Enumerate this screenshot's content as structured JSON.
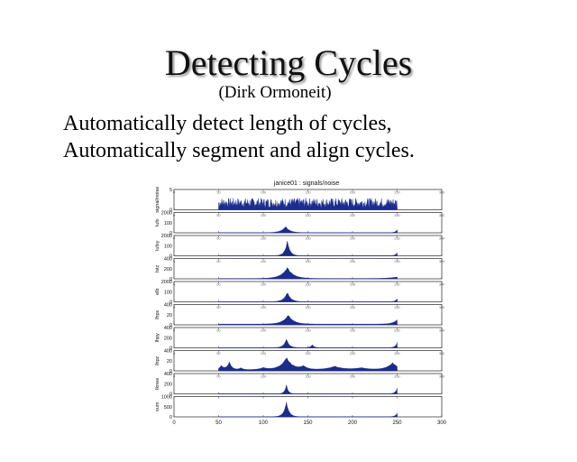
{
  "slide": {
    "title": "Detecting Cycles",
    "author": "(Dirk Ormoneit)",
    "bullets": [
      "Automatically detect length of cycles,",
      "Automatically segment and align cycles."
    ]
  },
  "colors": {
    "series": "#1c2c8c",
    "axis": "#000000",
    "grid": "#333333"
  },
  "chart_data": {
    "type": "area",
    "title": "janice01 : signals/noise",
    "x_axis": {
      "range": [
        0,
        300
      ],
      "tick_labels": [
        "0",
        "50",
        "100",
        "150",
        "200",
        "250",
        "300"
      ]
    },
    "data_extent": [
      50,
      250
    ],
    "panels": [
      {
        "name": "signals/noise",
        "ylabel": "signal/noise",
        "tick_labels": [
          "5",
          "0"
        ],
        "ylim": [
          0,
          5
        ],
        "shape": "noise",
        "baseline": 1.7,
        "noise": 1.2
      },
      {
        "name": "lufx",
        "ylabel": "lufx",
        "tick_labels": [
          "2000",
          "100",
          "0"
        ],
        "ylim": [
          0,
          200
        ],
        "shape": "peaks",
        "peaks": [
          [
            125,
            60,
            5
          ],
          [
            250,
            30,
            2
          ]
        ],
        "floor": 1
      },
      {
        "name": "lufxy",
        "ylabel": "lufxy",
        "tick_labels": [
          "2000",
          "100",
          "0"
        ],
        "ylim": [
          0,
          200
        ],
        "shape": "peaks",
        "peaks": [
          [
            127,
            140,
            3
          ],
          [
            250,
            30,
            2
          ]
        ],
        "floor": 1
      },
      {
        "name": "lstz",
        "ylabel": "lstz",
        "tick_labels": [
          "400",
          "200",
          "0"
        ],
        "ylim": [
          0,
          400
        ],
        "shape": "peaks",
        "peaks": [
          [
            127,
            210,
            7
          ],
          [
            250,
            30,
            10
          ]
        ],
        "floor": 6
      },
      {
        "name": "elb",
        "ylabel": "elb",
        "tick_labels": [
          "2000",
          "100",
          "0"
        ],
        "ylim": [
          0,
          200
        ],
        "shape": "peaks",
        "peaks": [
          [
            127,
            90,
            4
          ],
          [
            250,
            30,
            2
          ]
        ],
        "floor": 1
      },
      {
        "name": "lhpx",
        "ylabel": "lhpx",
        "tick_labels": [
          "400",
          "20",
          "0"
        ],
        "ylim": [
          0,
          40
        ],
        "shape": "peaks",
        "peaks": [
          [
            128,
            18,
            6
          ],
          [
            250,
            8,
            5
          ]
        ],
        "floor": 1.5
      },
      {
        "name": "lhpy",
        "ylabel": "lhpy",
        "tick_labels": [
          "400",
          "200",
          "0"
        ],
        "ylim": [
          0,
          400
        ],
        "shape": "peaks",
        "peaks": [
          [
            126,
            170,
            3
          ],
          [
            155,
            60,
            2
          ],
          [
            250,
            100,
            2
          ]
        ],
        "floor": 4
      },
      {
        "name": "lhpz",
        "ylabel": "lhpz",
        "tick_labels": [
          "400",
          "20",
          "0"
        ],
        "ylim": [
          0,
          40
        ],
        "shape": "peaks",
        "peaks": [
          [
            53,
            8,
            3
          ],
          [
            62,
            15,
            3
          ],
          [
            75,
            4,
            3
          ],
          [
            100,
            4,
            6
          ],
          [
            126,
            24,
            7
          ],
          [
            145,
            7,
            5
          ],
          [
            180,
            7,
            10
          ],
          [
            210,
            4,
            10
          ],
          [
            245,
            14,
            7
          ]
        ],
        "floor": 2
      },
      {
        "name": "lknee",
        "ylabel": "lknee",
        "tick_labels": [
          "400",
          "200",
          "0"
        ],
        "ylim": [
          0,
          400
        ],
        "shape": "peaks",
        "peaks": [
          [
            126,
            170,
            2
          ],
          [
            250,
            110,
            2
          ]
        ],
        "floor": 3
      },
      {
        "name": "sum",
        "ylabel": "sum",
        "tick_labels": [
          "1000",
          "500",
          "0"
        ],
        "ylim": [
          0,
          1000
        ],
        "shape": "peaks",
        "peaks": [
          [
            126,
            700,
            3
          ],
          [
            250,
            180,
            2
          ]
        ],
        "floor": 8
      }
    ]
  }
}
